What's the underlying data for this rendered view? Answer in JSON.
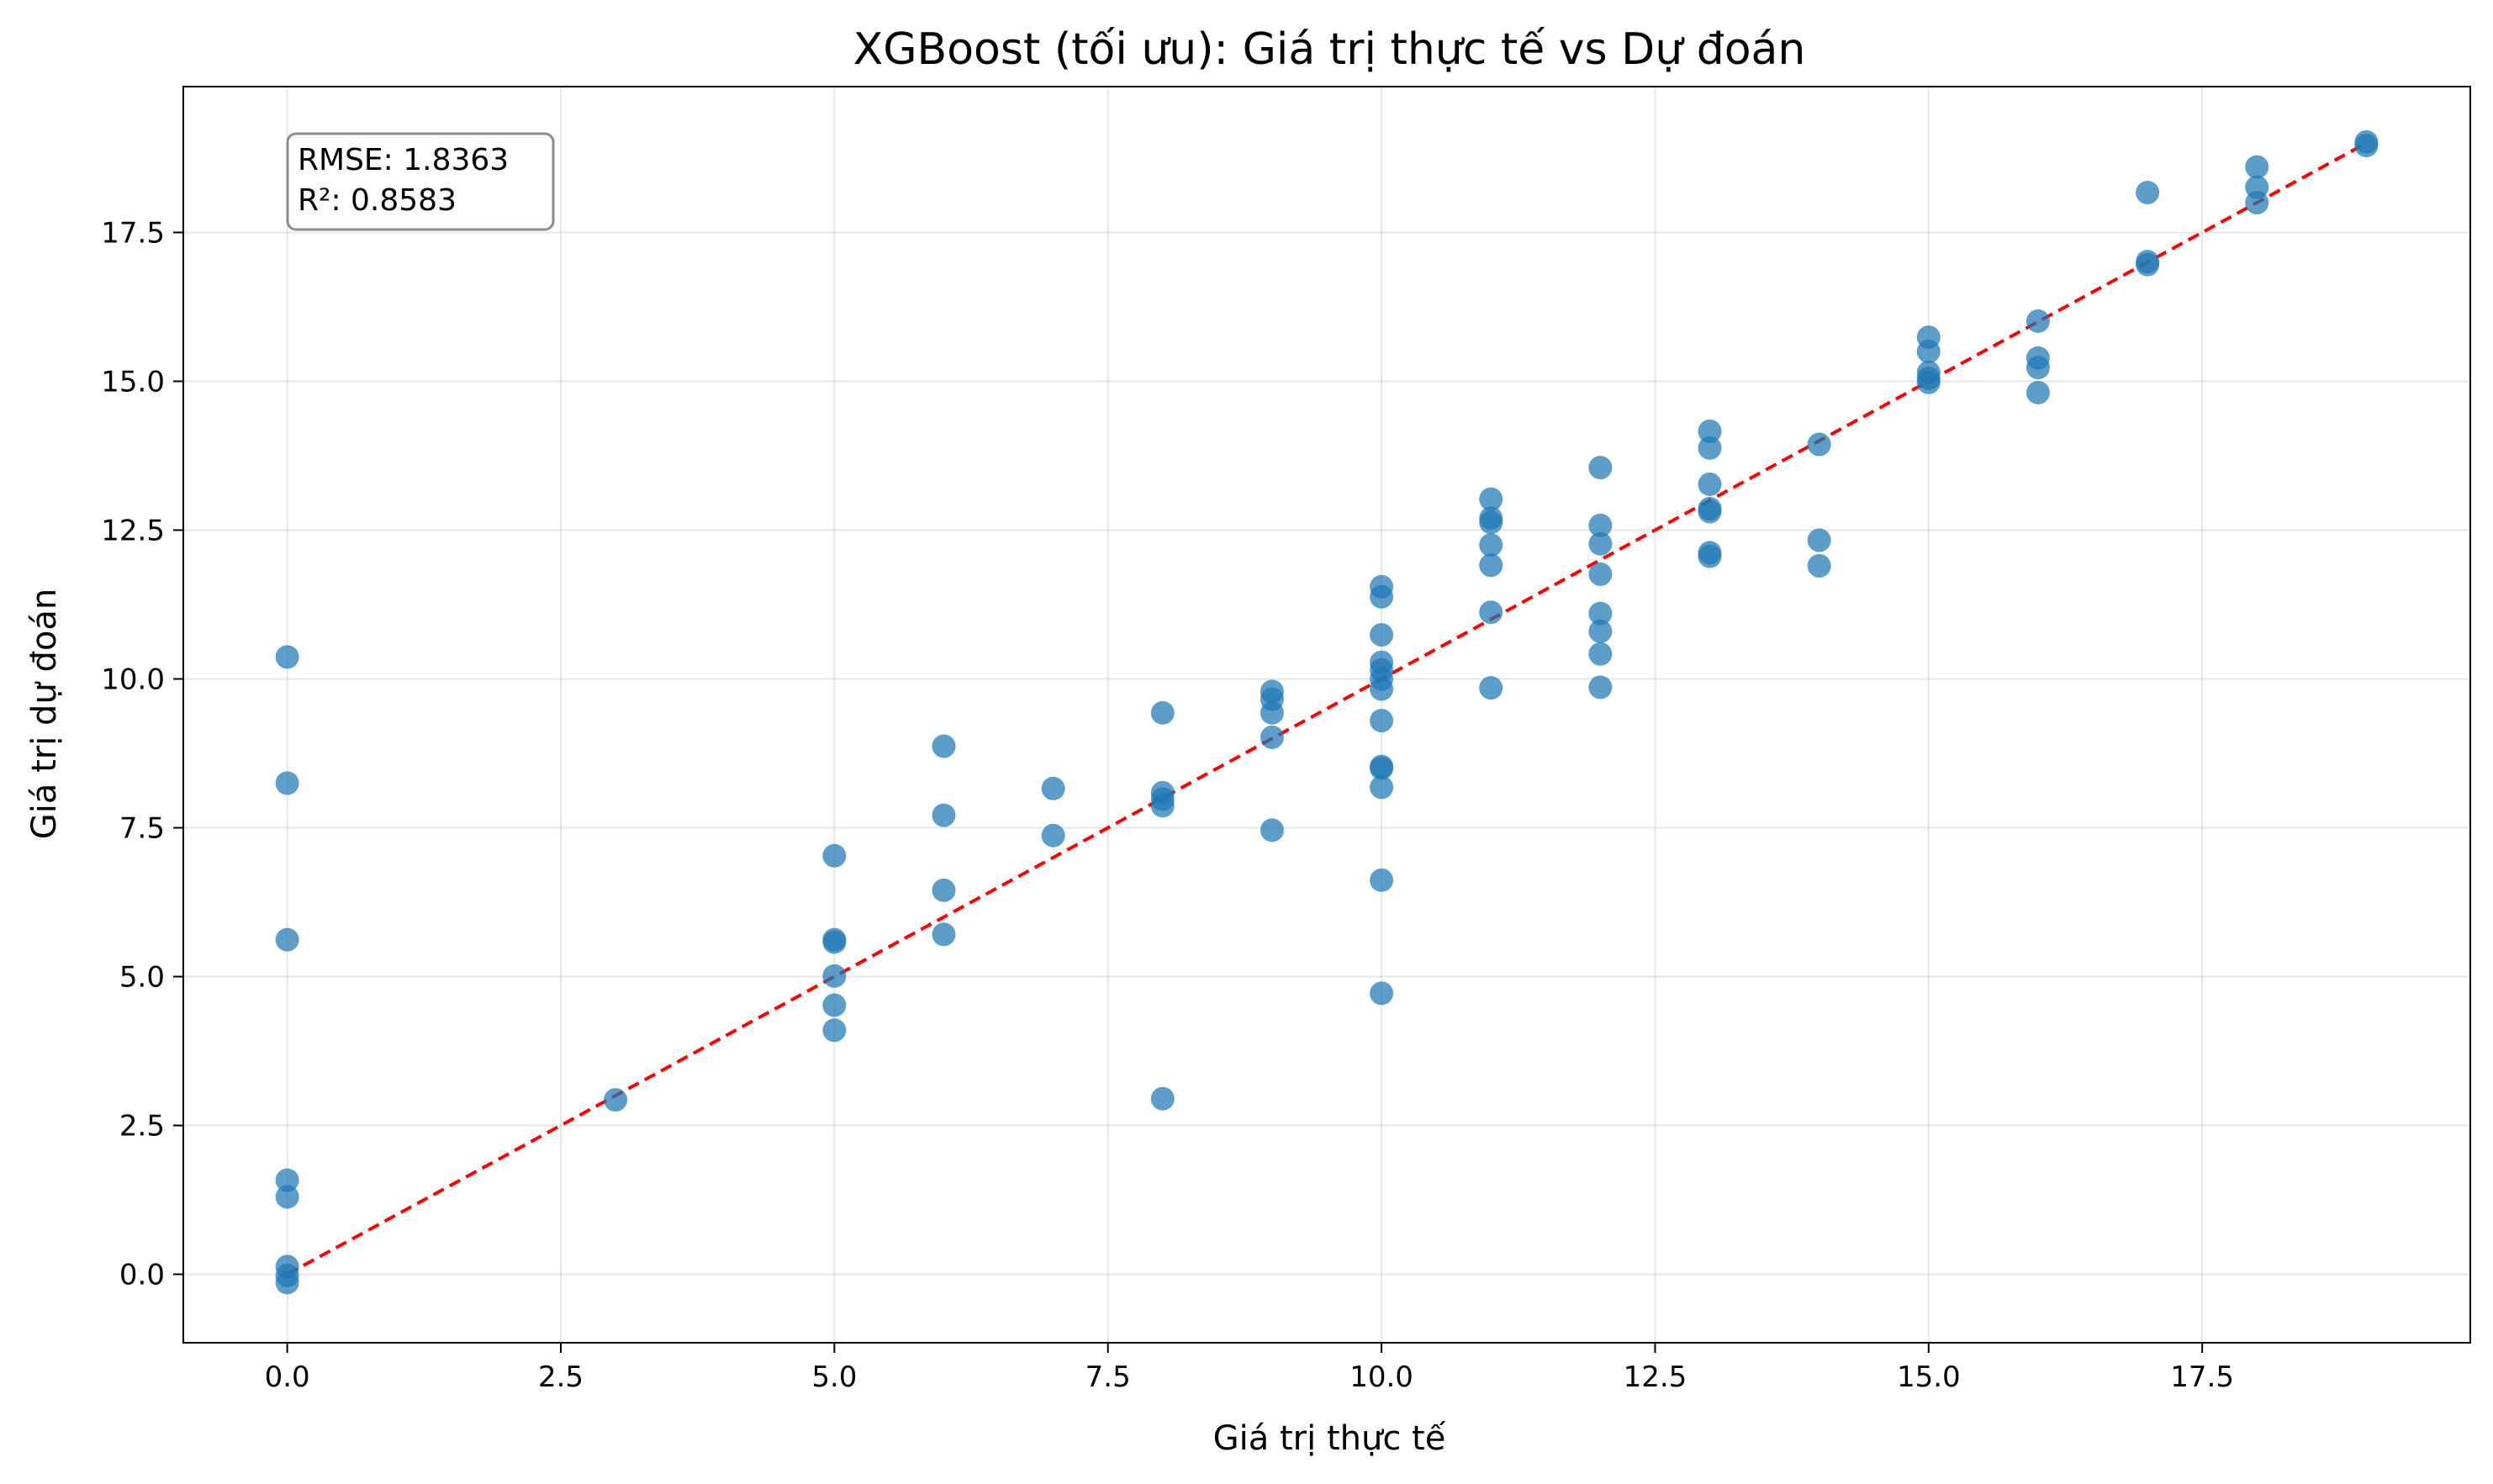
{
  "chart_data": {
    "type": "scatter",
    "title": "XGBoost (tối ưu): Giá trị thực tế vs Dự đoán",
    "xlabel": "Giá trị thực tế",
    "ylabel": "Giá trị dự đoán",
    "xlim": [
      -0.95,
      19.95
    ],
    "ylim": [
      -1.15,
      19.95
    ],
    "x_ticks": [
      0.0,
      2.5,
      5.0,
      7.5,
      10.0,
      12.5,
      15.0,
      17.5
    ],
    "x_tick_labels": [
      "0.0",
      "2.5",
      "5.0",
      "7.5",
      "10.0",
      "12.5",
      "15.0",
      "17.5"
    ],
    "y_ticks": [
      0.0,
      2.5,
      5.0,
      7.5,
      10.0,
      12.5,
      15.0,
      17.5
    ],
    "y_tick_labels": [
      "0.0",
      "2.5",
      "5.0",
      "7.5",
      "10.0",
      "12.5",
      "15.0",
      "17.5"
    ],
    "grid": true,
    "point_color": "#1f77b4",
    "reference_line": {
      "style": "dashed",
      "color": "#ff0000",
      "from": [
        0,
        0
      ],
      "to": [
        19,
        19
      ]
    },
    "annotation": {
      "lines": [
        "RMSE: 1.8363",
        "R²: 0.8583"
      ],
      "position": "top-left"
    },
    "points": [
      {
        "x": 0,
        "y": 10.37
      },
      {
        "x": 0,
        "y": 8.25
      },
      {
        "x": 0,
        "y": 5.62
      },
      {
        "x": 0,
        "y": 1.58
      },
      {
        "x": 0,
        "y": 1.3
      },
      {
        "x": 0,
        "y": 0.13
      },
      {
        "x": 0,
        "y": -0.02
      },
      {
        "x": 0,
        "y": -0.14
      },
      {
        "x": 3,
        "y": 2.93
      },
      {
        "x": 5,
        "y": 7.03
      },
      {
        "x": 5,
        "y": 5.62
      },
      {
        "x": 5,
        "y": 5.58
      },
      {
        "x": 5,
        "y": 5.01
      },
      {
        "x": 5,
        "y": 4.52
      },
      {
        "x": 5,
        "y": 4.1
      },
      {
        "x": 6,
        "y": 8.87
      },
      {
        "x": 6,
        "y": 7.71
      },
      {
        "x": 6,
        "y": 6.45
      },
      {
        "x": 6,
        "y": 5.71
      },
      {
        "x": 7,
        "y": 8.16
      },
      {
        "x": 7,
        "y": 7.37
      },
      {
        "x": 8,
        "y": 9.43
      },
      {
        "x": 8,
        "y": 8.09
      },
      {
        "x": 8,
        "y": 7.98
      },
      {
        "x": 8,
        "y": 7.87
      },
      {
        "x": 8,
        "y": 2.95
      },
      {
        "x": 9,
        "y": 9.79
      },
      {
        "x": 9,
        "y": 9.66
      },
      {
        "x": 9,
        "y": 9.43
      },
      {
        "x": 9,
        "y": 9.02
      },
      {
        "x": 9,
        "y": 7.46
      },
      {
        "x": 10,
        "y": 11.55
      },
      {
        "x": 10,
        "y": 11.38
      },
      {
        "x": 10,
        "y": 10.74
      },
      {
        "x": 10,
        "y": 10.28
      },
      {
        "x": 10,
        "y": 10.15
      },
      {
        "x": 10,
        "y": 10.0
      },
      {
        "x": 10,
        "y": 9.83
      },
      {
        "x": 10,
        "y": 9.3
      },
      {
        "x": 10,
        "y": 8.53
      },
      {
        "x": 10,
        "y": 8.5
      },
      {
        "x": 10,
        "y": 8.18
      },
      {
        "x": 10,
        "y": 6.62
      },
      {
        "x": 10,
        "y": 4.72
      },
      {
        "x": 11,
        "y": 13.02
      },
      {
        "x": 11,
        "y": 12.7
      },
      {
        "x": 11,
        "y": 12.63
      },
      {
        "x": 11,
        "y": 12.25
      },
      {
        "x": 11,
        "y": 11.91
      },
      {
        "x": 11,
        "y": 11.12
      },
      {
        "x": 11,
        "y": 9.85
      },
      {
        "x": 12,
        "y": 13.55
      },
      {
        "x": 12,
        "y": 12.58
      },
      {
        "x": 12,
        "y": 12.27
      },
      {
        "x": 12,
        "y": 11.76
      },
      {
        "x": 12,
        "y": 11.1
      },
      {
        "x": 12,
        "y": 10.8
      },
      {
        "x": 12,
        "y": 10.42
      },
      {
        "x": 12,
        "y": 9.86
      },
      {
        "x": 13,
        "y": 14.16
      },
      {
        "x": 13,
        "y": 13.88
      },
      {
        "x": 13,
        "y": 13.27
      },
      {
        "x": 13,
        "y": 12.86
      },
      {
        "x": 13,
        "y": 12.81
      },
      {
        "x": 13,
        "y": 12.12
      },
      {
        "x": 13,
        "y": 12.06
      },
      {
        "x": 14,
        "y": 13.94
      },
      {
        "x": 14,
        "y": 12.33
      },
      {
        "x": 14,
        "y": 11.9
      },
      {
        "x": 15,
        "y": 15.74
      },
      {
        "x": 15,
        "y": 15.5
      },
      {
        "x": 15,
        "y": 15.15
      },
      {
        "x": 15,
        "y": 15.05
      },
      {
        "x": 15,
        "y": 14.98
      },
      {
        "x": 16,
        "y": 16.01
      },
      {
        "x": 16,
        "y": 15.39
      },
      {
        "x": 16,
        "y": 15.23
      },
      {
        "x": 16,
        "y": 14.81
      },
      {
        "x": 17,
        "y": 18.17
      },
      {
        "x": 17,
        "y": 17.01
      },
      {
        "x": 17,
        "y": 16.96
      },
      {
        "x": 18,
        "y": 18.6
      },
      {
        "x": 18,
        "y": 18.26
      },
      {
        "x": 18,
        "y": 18.0
      },
      {
        "x": 19,
        "y": 19.02
      },
      {
        "x": 19,
        "y": 18.96
      }
    ]
  }
}
